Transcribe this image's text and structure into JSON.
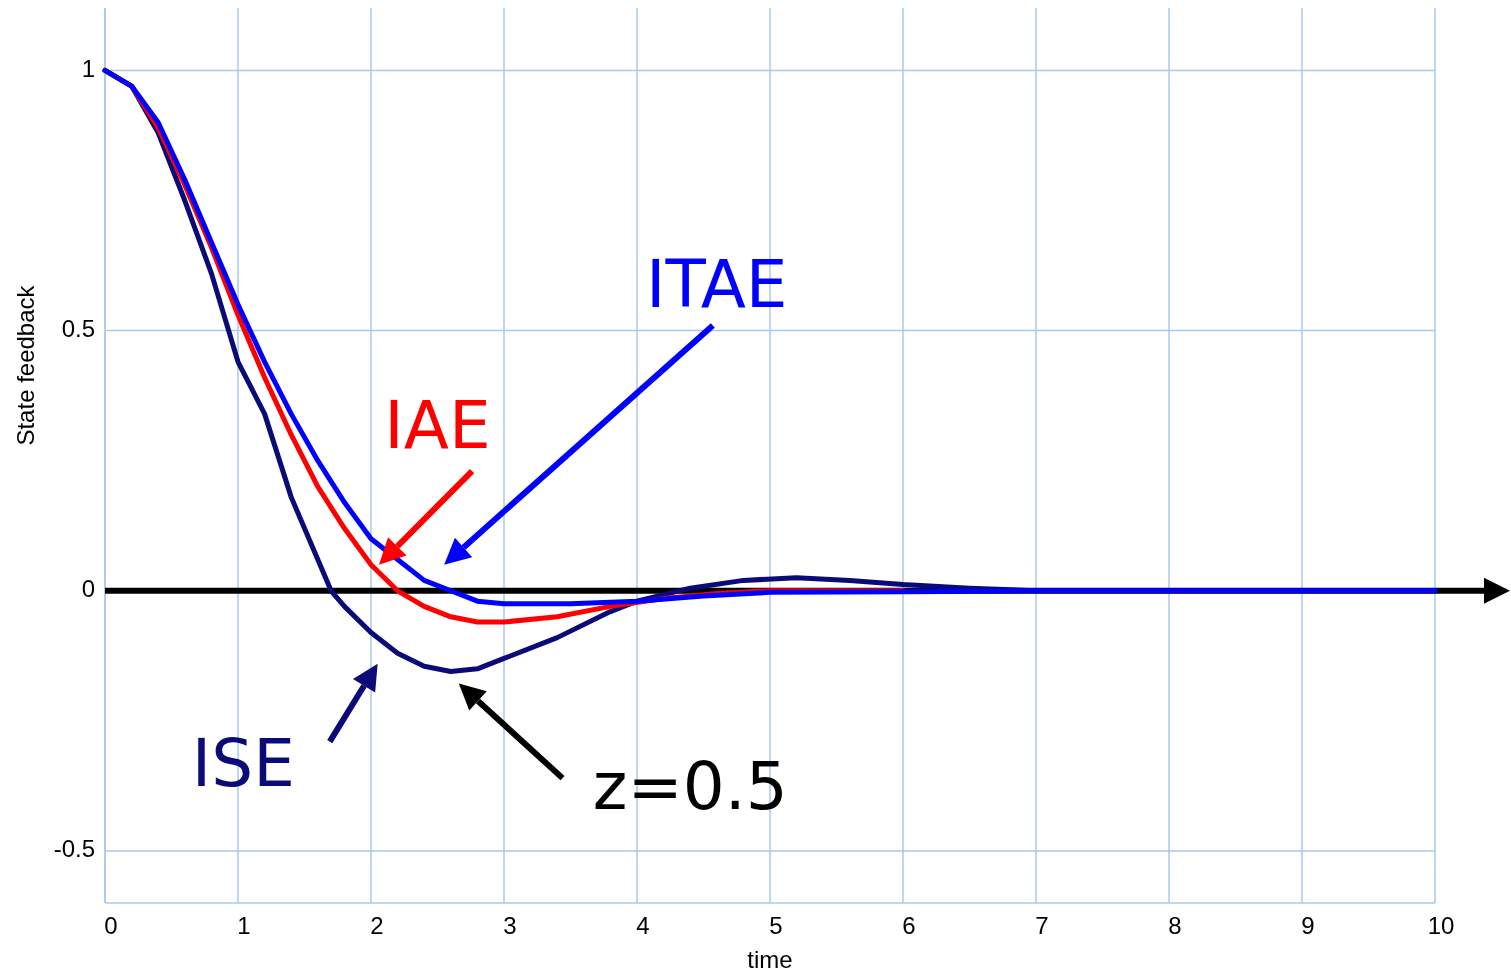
{
  "chart_data": {
    "type": "line",
    "xlabel": "time",
    "ylabel": "State feedback",
    "xlim": [
      0,
      10
    ],
    "xticks": [
      0,
      1,
      2,
      3,
      4,
      5,
      6,
      7,
      8,
      9,
      10
    ],
    "ylim": [
      -0.6,
      1.12
    ],
    "yticks": [
      -0.5,
      0,
      0.5,
      1
    ],
    "grid": true,
    "line_style": "solid",
    "marker": "none",
    "series": [
      {
        "name": "ISE",
        "color": "#0a0a78",
        "x": [
          0,
          0.2,
          0.4,
          0.6,
          0.8,
          1,
          1.2,
          1.4,
          1.6,
          1.7,
          1.8,
          2,
          2.2,
          2.4,
          2.6,
          2.8,
          3,
          3.4,
          3.8,
          4,
          4.4,
          4.8,
          5.2,
          5.6,
          6,
          6.5,
          7,
          8,
          9,
          10
        ],
        "values": [
          1,
          0.97,
          0.88,
          0.75,
          0.61,
          0.44,
          0.34,
          0.18,
          0.06,
          0,
          -0.03,
          -0.08,
          -0.12,
          -0.145,
          -0.155,
          -0.15,
          -0.13,
          -0.09,
          -0.04,
          -0.02,
          0.005,
          0.02,
          0.025,
          0.02,
          0.012,
          0.005,
          0,
          0,
          0,
          0
        ]
      },
      {
        "name": "IAE",
        "color": "#ff0000",
        "x": [
          0,
          0.2,
          0.4,
          0.6,
          0.8,
          1,
          1.2,
          1.4,
          1.6,
          1.8,
          2,
          2.2,
          2.4,
          2.6,
          2.8,
          3,
          3.4,
          3.8,
          4.2,
          4.6,
          5,
          6
        ],
        "values": [
          1,
          0.97,
          0.89,
          0.78,
          0.66,
          0.53,
          0.41,
          0.3,
          0.2,
          0.12,
          0.05,
          0,
          -0.03,
          -0.05,
          -0.06,
          -0.06,
          -0.05,
          -0.03,
          -0.015,
          -0.005,
          0,
          0
        ]
      },
      {
        "name": "ITAE",
        "color": "#0000ff",
        "x": [
          0,
          0.2,
          0.4,
          0.6,
          0.8,
          1,
          1.2,
          1.4,
          1.6,
          1.8,
          2,
          2.2,
          2.4,
          2.6,
          2.8,
          3,
          3.5,
          4,
          4.5,
          5,
          6,
          7,
          8,
          9,
          10
        ],
        "values": [
          1,
          0.97,
          0.9,
          0.79,
          0.67,
          0.55,
          0.44,
          0.34,
          0.25,
          0.17,
          0.1,
          0.06,
          0.02,
          0,
          -0.02,
          -0.025,
          -0.025,
          -0.02,
          -0.01,
          -0.003,
          -0.002,
          0,
          0,
          0,
          0
        ]
      }
    ],
    "ref_lines": [
      {
        "axis": "y",
        "value": 0,
        "color": "#000000"
      }
    ],
    "annotations": [
      {
        "text": "z=0.5",
        "x": 2.6,
        "y": -0.155
      }
    ]
  }
}
